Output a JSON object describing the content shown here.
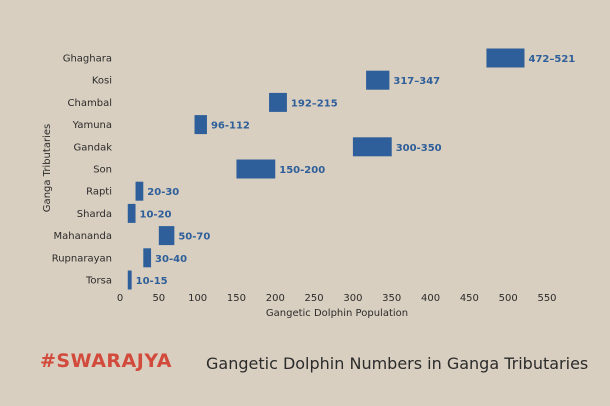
{
  "brand": {
    "text": "#SWARAJYA"
  },
  "chart_data": {
    "type": "bar",
    "orientation": "horizontal-range",
    "title": "Gangetic Dolphin Numbers in Ganga Tributaries",
    "xlabel": "Gangetic Dolphin Population",
    "ylabel": "Ganga Tributaries",
    "xlim": [
      0,
      550
    ],
    "xticks": [
      0,
      50,
      100,
      150,
      200,
      250,
      300,
      350,
      400,
      450,
      500,
      550
    ],
    "grid": false,
    "bar_color": "#2e5f9a",
    "label_color": "#2e5f9a",
    "categories": [
      "Ghaghara",
      "Kosi",
      "Chambal",
      "Yamuna",
      "Gandak",
      "Son",
      "Rapti",
      "Sharda",
      "Mahananda",
      "Rupnarayan",
      "Torsa"
    ],
    "ranges": [
      [
        472,
        521
      ],
      [
        317,
        347
      ],
      [
        192,
        215
      ],
      [
        96,
        112
      ],
      [
        300,
        350
      ],
      [
        150,
        200
      ],
      [
        20,
        30
      ],
      [
        10,
        20
      ],
      [
        50,
        70
      ],
      [
        30,
        40
      ],
      [
        10,
        15
      ]
    ],
    "labels": [
      "472–521",
      "317–347",
      "192–215",
      "96-112",
      "300-350",
      "150-200",
      "20-30",
      "10-20",
      "50-70",
      "30-40",
      "10-15"
    ]
  }
}
